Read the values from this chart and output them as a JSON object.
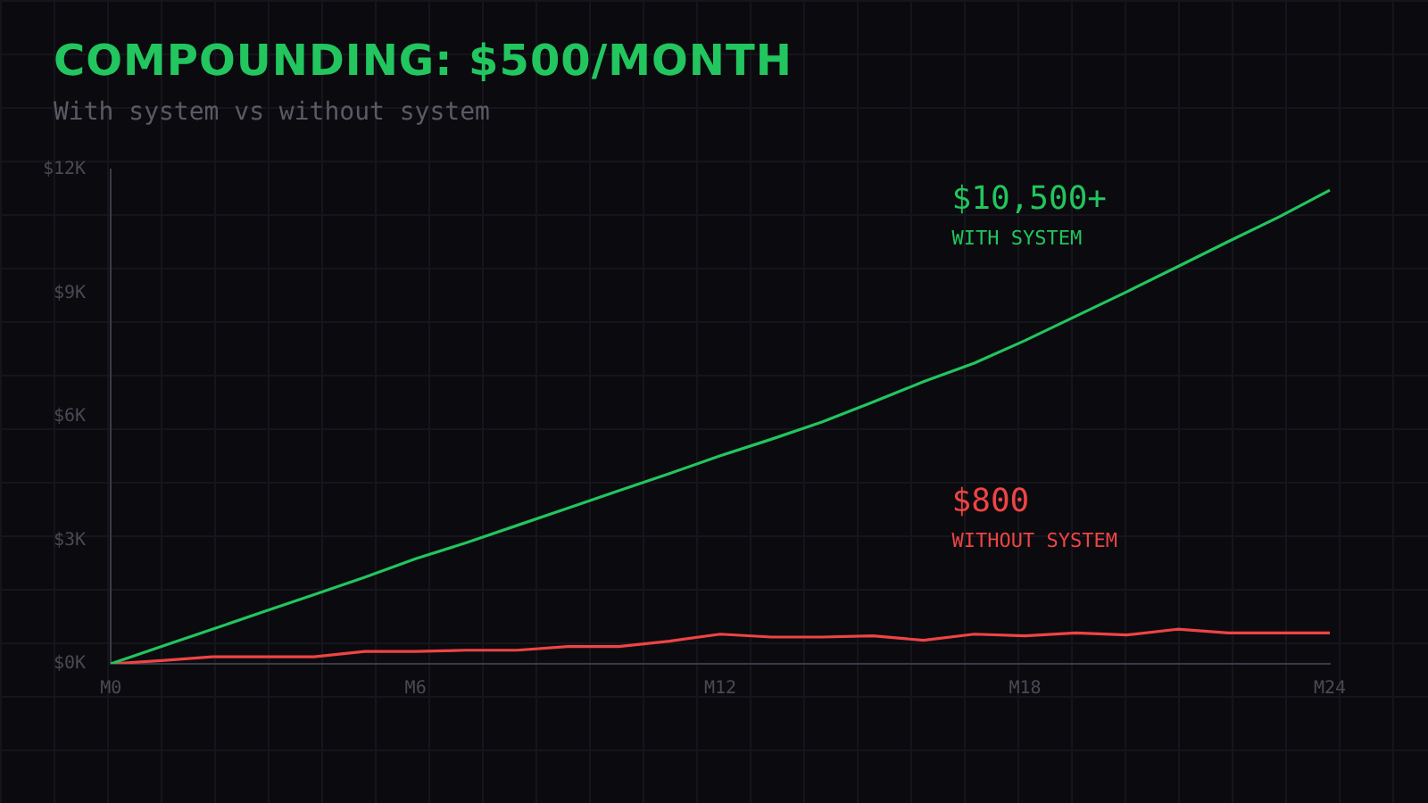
{
  "chart_data": {
    "type": "line",
    "title": "COMPOUNDING: $500/MONTH",
    "subtitle": "With system vs without system",
    "categories": [
      "M0",
      null,
      null,
      null,
      null,
      null,
      "M6",
      null,
      null,
      null,
      null,
      null,
      "M12",
      null,
      null,
      null,
      null,
      null,
      "M18",
      null,
      null,
      null,
      null,
      null,
      "M24"
    ],
    "ylim": [
      0,
      12
    ],
    "yticks": [
      {
        "value": 0,
        "label": "$0K"
      },
      {
        "value": 3,
        "label": "$3K"
      },
      {
        "value": 6,
        "label": "$6K"
      },
      {
        "value": 9,
        "label": "$9K"
      },
      {
        "value": 12,
        "label": "$12K"
      }
    ],
    "grid": false,
    "legend": false,
    "marker": "none",
    "line_style": "solid",
    "annotations": [
      "$10,500+",
      "$800"
    ],
    "series": [
      {
        "name": "WITH SYSTEM",
        "color": "#22c55e",
        "values": [
          0,
          0.42,
          0.84,
          1.26,
          1.68,
          2.1,
          2.55,
          2.94,
          3.36,
          3.78,
          4.2,
          4.62,
          5.05,
          5.45,
          5.87,
          6.35,
          6.85,
          7.3,
          7.85,
          8.44,
          9.03,
          9.64,
          10.25,
          10.85,
          11.5
        ]
      },
      {
        "name": "WITHOUT SYSTEM",
        "color": "#ef4444",
        "values": [
          0,
          0.08,
          0.17,
          0.17,
          0.17,
          0.3,
          0.3,
          0.33,
          0.33,
          0.42,
          0.42,
          0.55,
          0.72,
          0.65,
          0.65,
          0.68,
          0.57,
          0.72,
          0.68,
          0.75,
          0.7,
          0.84,
          0.75,
          0.75,
          0.75
        ]
      }
    ]
  }
}
